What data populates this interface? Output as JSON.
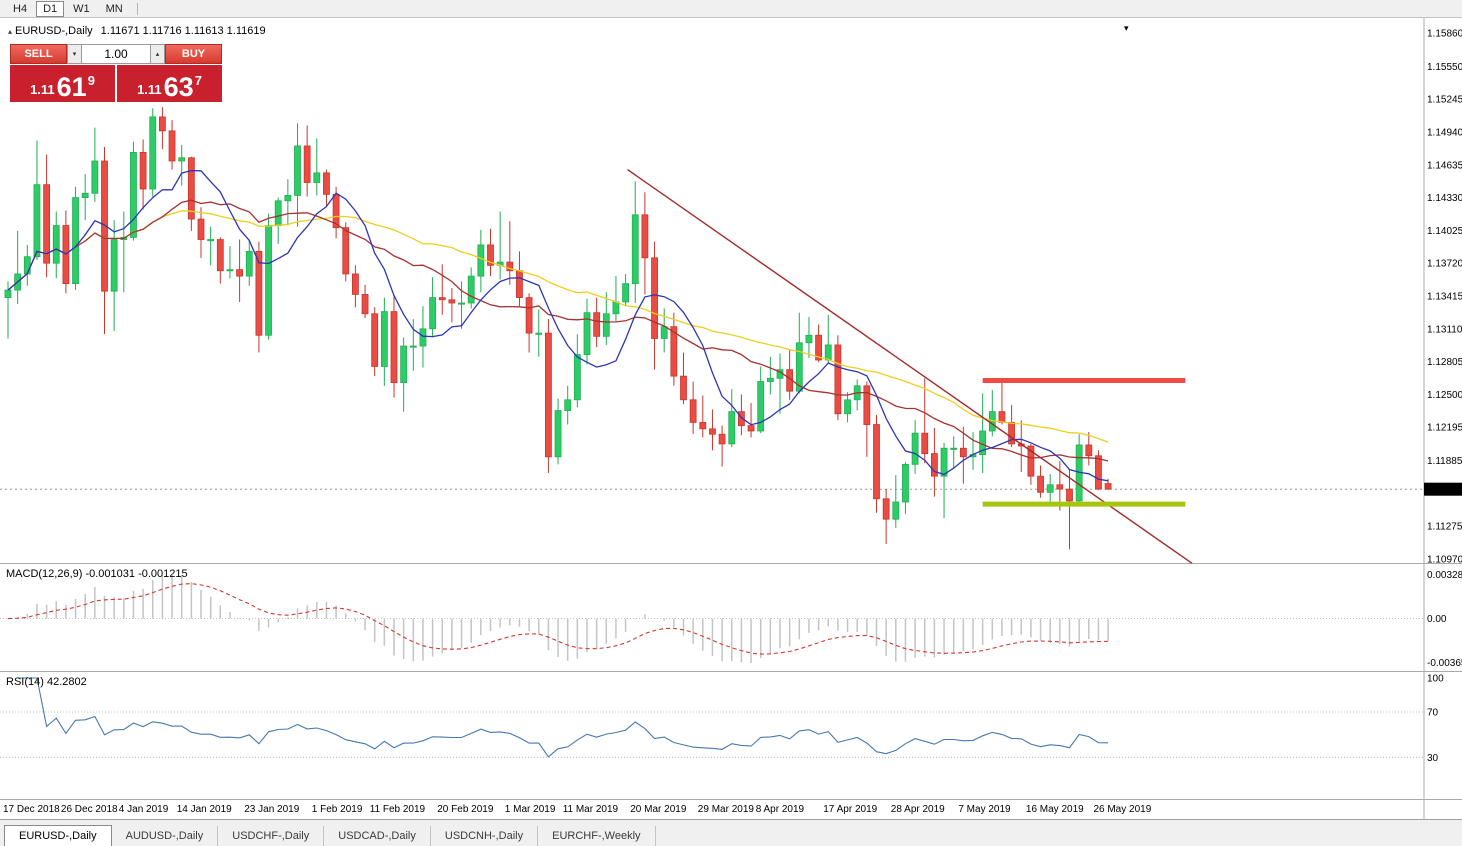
{
  "icons": {
    "symbol_marker": "▴",
    "volume_down": "▾",
    "volume_up": "▴",
    "shift_marker": "▾"
  },
  "toolbar": {
    "timeframes": [
      {
        "label": "H4",
        "active": false
      },
      {
        "label": "D1",
        "active": true
      },
      {
        "label": "W1",
        "active": false
      },
      {
        "label": "MN",
        "active": false
      }
    ]
  },
  "symbol_header": {
    "name": "EURUSD-,Daily",
    "ohlc": "1.11671 1.11716 1.11613 1.11619"
  },
  "trade_panel": {
    "sell_label": "SELL",
    "buy_label": "BUY",
    "volume": "1.00",
    "sell_price": {
      "prefix": "1.11",
      "big": "61",
      "sup": "9"
    },
    "buy_price": {
      "prefix": "1.11",
      "big": "63",
      "sup": "7"
    }
  },
  "chart_data": {
    "type": "candlestick",
    "symbol": "EURUSD-,Daily",
    "colors": {
      "up": "#2ecc66",
      "up_edge": "#1fae54",
      "down": "#e84c42",
      "down_edge": "#c8362d",
      "price_line": "#888888",
      "tag_bg": "#000000",
      "tag_text": "#ffffff"
    },
    "price_axis": {
      "labels": [
        "1.15860",
        "1.15550",
        "1.15245",
        "1.14940",
        "1.14635",
        "1.14330",
        "1.14025",
        "1.13720",
        "1.13415",
        "1.13110",
        "1.12805",
        "1.12500",
        "1.12195",
        "1.11885",
        "1.11275",
        "1.10970"
      ],
      "current": "1.11619"
    },
    "date_axis": [
      {
        "label": "17 Dec 2018",
        "i": 0
      },
      {
        "label": "26 Dec 2018",
        "i": 6
      },
      {
        "label": "4 Jan 2019",
        "i": 12
      },
      {
        "label": "14 Jan 2019",
        "i": 18
      },
      {
        "label": "23 Jan 2019",
        "i": 25
      },
      {
        "label": "1 Feb 2019",
        "i": 32
      },
      {
        "label": "11 Feb 2019",
        "i": 38
      },
      {
        "label": "20 Feb 2019",
        "i": 45
      },
      {
        "label": "1 Mar 2019",
        "i": 52
      },
      {
        "label": "11 Mar 2019",
        "i": 58
      },
      {
        "label": "20 Mar 2019",
        "i": 65
      },
      {
        "label": "29 Mar 2019",
        "i": 72
      },
      {
        "label": "8 Apr 2019",
        "i": 78
      },
      {
        "label": "17 Apr 2019",
        "i": 85
      },
      {
        "label": "28 Apr 2019",
        "i": 92
      },
      {
        "label": "7 May 2019",
        "i": 99
      },
      {
        "label": "16 May 2019",
        "i": 106
      },
      {
        "label": "26 May 2019",
        "i": 113
      }
    ],
    "candles": [
      [
        1.134,
        1.1355,
        1.1302,
        1.1347
      ],
      [
        1.1347,
        1.1402,
        1.1334,
        1.1362
      ],
      [
        1.1362,
        1.1389,
        1.1351,
        1.1378
      ],
      [
        1.1378,
        1.1486,
        1.1375,
        1.1445
      ],
      [
        1.1445,
        1.1473,
        1.1359,
        1.1372
      ],
      [
        1.1372,
        1.142,
        1.1358,
        1.1407
      ],
      [
        1.1407,
        1.1421,
        1.1344,
        1.1353
      ],
      [
        1.1353,
        1.1443,
        1.1347,
        1.1433
      ],
      [
        1.1433,
        1.1455,
        1.1412,
        1.1437
      ],
      [
        1.1437,
        1.1498,
        1.1429,
        1.1467
      ],
      [
        1.1467,
        1.148,
        1.1306,
        1.1346
      ],
      [
        1.1346,
        1.1412,
        1.1309,
        1.1394
      ],
      [
        1.1394,
        1.142,
        1.1345,
        1.1396
      ],
      [
        1.1396,
        1.1485,
        1.1393,
        1.1475
      ],
      [
        1.1475,
        1.1487,
        1.1422,
        1.1441
      ],
      [
        1.1441,
        1.1516,
        1.1434,
        1.1508
      ],
      [
        1.1508,
        1.1517,
        1.1478,
        1.1495
      ],
      [
        1.1495,
        1.1505,
        1.1459,
        1.1467
      ],
      [
        1.1467,
        1.1482,
        1.1444,
        1.147
      ],
      [
        1.147,
        1.1471,
        1.1402,
        1.1413
      ],
      [
        1.1413,
        1.1424,
        1.1377,
        1.1394
      ],
      [
        1.1394,
        1.1406,
        1.137,
        1.1394
      ],
      [
        1.1394,
        1.1396,
        1.1353,
        1.1365
      ],
      [
        1.1365,
        1.1388,
        1.1358,
        1.1366
      ],
      [
        1.1366,
        1.1394,
        1.1336,
        1.136
      ],
      [
        1.136,
        1.1394,
        1.1351,
        1.1383
      ],
      [
        1.1383,
        1.1392,
        1.1289,
        1.1305
      ],
      [
        1.1305,
        1.1418,
        1.1301,
        1.1407
      ],
      [
        1.1407,
        1.1433,
        1.139,
        1.143
      ],
      [
        1.143,
        1.145,
        1.1407,
        1.1435
      ],
      [
        1.1435,
        1.1502,
        1.1406,
        1.1481
      ],
      [
        1.1481,
        1.15,
        1.1434,
        1.1447
      ],
      [
        1.1447,
        1.1488,
        1.1435,
        1.1456
      ],
      [
        1.1456,
        1.1459,
        1.1425,
        1.1436
      ],
      [
        1.1436,
        1.1443,
        1.1395,
        1.1405
      ],
      [
        1.1405,
        1.141,
        1.1355,
        1.1362
      ],
      [
        1.1362,
        1.137,
        1.1331,
        1.1343
      ],
      [
        1.1343,
        1.1352,
        1.1321,
        1.1325
      ],
      [
        1.1325,
        1.1331,
        1.1267,
        1.1276
      ],
      [
        1.1276,
        1.134,
        1.1258,
        1.1327
      ],
      [
        1.1327,
        1.1342,
        1.1247,
        1.1261
      ],
      [
        1.1261,
        1.1303,
        1.1234,
        1.1295
      ],
      [
        1.1295,
        1.132,
        1.1272,
        1.1295
      ],
      [
        1.1295,
        1.1332,
        1.1275,
        1.1311
      ],
      [
        1.1311,
        1.1359,
        1.1303,
        1.134
      ],
      [
        1.134,
        1.1371,
        1.1324,
        1.1338
      ],
      [
        1.1338,
        1.1349,
        1.1317,
        1.1335
      ],
      [
        1.1335,
        1.1355,
        1.1311,
        1.1335
      ],
      [
        1.1335,
        1.1368,
        1.133,
        1.136
      ],
      [
        1.136,
        1.1403,
        1.1345,
        1.1389
      ],
      [
        1.1389,
        1.1404,
        1.136,
        1.137
      ],
      [
        1.137,
        1.142,
        1.1357,
        1.1373
      ],
      [
        1.1373,
        1.1411,
        1.1352,
        1.1365
      ],
      [
        1.1365,
        1.1383,
        1.1332,
        1.134
      ],
      [
        1.134,
        1.1344,
        1.1289,
        1.1307
      ],
      [
        1.1307,
        1.1329,
        1.1285,
        1.1307
      ],
      [
        1.1307,
        1.132,
        1.1177,
        1.1192
      ],
      [
        1.1192,
        1.1246,
        1.1185,
        1.1235
      ],
      [
        1.1235,
        1.1258,
        1.1222,
        1.1245
      ],
      [
        1.1245,
        1.1306,
        1.1238,
        1.1287
      ],
      [
        1.1287,
        1.1339,
        1.1278,
        1.1326
      ],
      [
        1.1326,
        1.134,
        1.1294,
        1.1304
      ],
      [
        1.1304,
        1.1345,
        1.1296,
        1.1325
      ],
      [
        1.1325,
        1.136,
        1.1318,
        1.1336
      ],
      [
        1.1336,
        1.1362,
        1.1333,
        1.1353
      ],
      [
        1.1353,
        1.1448,
        1.1335,
        1.1417
      ],
      [
        1.1417,
        1.1438,
        1.1343,
        1.1377
      ],
      [
        1.1377,
        1.1392,
        1.1273,
        1.1302
      ],
      [
        1.1302,
        1.133,
        1.1289,
        1.1313
      ],
      [
        1.1313,
        1.1326,
        1.1258,
        1.1267
      ],
      [
        1.1267,
        1.1289,
        1.1241,
        1.1245
      ],
      [
        1.1245,
        1.1262,
        1.1213,
        1.1224
      ],
      [
        1.1224,
        1.1249,
        1.121,
        1.1218
      ],
      [
        1.1218,
        1.1236,
        1.1198,
        1.1213
      ],
      [
        1.1213,
        1.1221,
        1.1183,
        1.1204
      ],
      [
        1.1204,
        1.1255,
        1.1201,
        1.1234
      ],
      [
        1.1234,
        1.125,
        1.1212,
        1.1221
      ],
      [
        1.1221,
        1.1242,
        1.121,
        1.1216
      ],
      [
        1.1216,
        1.1276,
        1.1214,
        1.1262
      ],
      [
        1.1262,
        1.1285,
        1.125,
        1.1265
      ],
      [
        1.1265,
        1.1288,
        1.1232,
        1.1273
      ],
      [
        1.1273,
        1.1292,
        1.1245,
        1.1253
      ],
      [
        1.1253,
        1.1326,
        1.1251,
        1.1298
      ],
      [
        1.1298,
        1.1322,
        1.1284,
        1.1305
      ],
      [
        1.1305,
        1.1315,
        1.128,
        1.1282
      ],
      [
        1.1282,
        1.1324,
        1.1279,
        1.1296
      ],
      [
        1.1296,
        1.1305,
        1.1226,
        1.1232
      ],
      [
        1.1232,
        1.1252,
        1.1224,
        1.1245
      ],
      [
        1.1245,
        1.1264,
        1.1235,
        1.1258
      ],
      [
        1.1258,
        1.1262,
        1.1192,
        1.1222
      ],
      [
        1.1222,
        1.1231,
        1.114,
        1.1153
      ],
      [
        1.1153,
        1.1162,
        1.1111,
        1.1134
      ],
      [
        1.1134,
        1.1175,
        1.1126,
        1.115
      ],
      [
        1.115,
        1.1187,
        1.1139,
        1.1185
      ],
      [
        1.1185,
        1.1226,
        1.1176,
        1.1214
      ],
      [
        1.1214,
        1.1265,
        1.1186,
        1.1195
      ],
      [
        1.1195,
        1.1219,
        1.1155,
        1.1174
      ],
      [
        1.1174,
        1.1205,
        1.1135,
        1.12
      ],
      [
        1.12,
        1.1211,
        1.1182,
        1.12
      ],
      [
        1.12,
        1.122,
        1.1167,
        1.1192
      ],
      [
        1.1192,
        1.1215,
        1.118,
        1.1194
      ],
      [
        1.1194,
        1.1251,
        1.1177,
        1.1216
      ],
      [
        1.1216,
        1.1254,
        1.1211,
        1.1234
      ],
      [
        1.1234,
        1.1264,
        1.1222,
        1.1224
      ],
      [
        1.1224,
        1.124,
        1.1201,
        1.1204
      ],
      [
        1.1204,
        1.1226,
        1.1178,
        1.1202
      ],
      [
        1.1202,
        1.1204,
        1.1166,
        1.1174
      ],
      [
        1.1174,
        1.1184,
        1.1154,
        1.1159
      ],
      [
        1.1159,
        1.1176,
        1.115,
        1.1166
      ],
      [
        1.1166,
        1.1188,
        1.1142,
        1.1162
      ],
      [
        1.1162,
        1.118,
        1.1106,
        1.1151
      ],
      [
        1.1151,
        1.1213,
        1.1148,
        1.1203
      ],
      [
        1.1203,
        1.1215,
        1.1184,
        1.1193
      ],
      [
        1.1193,
        1.1198,
        1.1161,
        1.1162
      ],
      [
        1.11671,
        1.11716,
        1.11613,
        1.11619
      ]
    ],
    "overlays": {
      "moving_averages": [
        {
          "name": "ma-slow",
          "period": 34,
          "color": "#eecf1e"
        },
        {
          "name": "ma-mid",
          "period": 17,
          "color": "#a83232"
        },
        {
          "name": "ma-fast",
          "period": 8,
          "color": "#2c35b8"
        }
      ],
      "trendline": {
        "from_index": 64.2,
        "from_price": 1.1459,
        "to_index": 122.7,
        "to_price": 1.1093,
        "color": "#a52a2a"
      },
      "resistance": {
        "from_index": 101,
        "to_index": 122,
        "price": 1.1263,
        "color": "#f04b43",
        "width": 5
      },
      "support": {
        "from_index": 101,
        "to_index": 122,
        "price": 1.1148,
        "color": "#a6c50e",
        "width": 5
      }
    },
    "macd": {
      "label": "MACD(12,26,9) -0.001031 -0.001215",
      "fast": 12,
      "slow": 26,
      "signal": 9,
      "axis_top": "0.003287",
      "axis_zero": "0.00",
      "axis_bottom": "-0.003655",
      "histogram_color": "#c4c4c4",
      "signal_color": "#d23a32"
    },
    "rsi": {
      "label": "RSI(14) 42.2802",
      "period": 14,
      "axis": [
        {
          "v": 100,
          "label": "100"
        },
        {
          "v": 70,
          "label": "70"
        },
        {
          "v": 30,
          "label": "30"
        }
      ],
      "levels": [
        70,
        30
      ],
      "line_color": "#4878b0"
    }
  },
  "tabs": [
    {
      "label": "EURUSD-,Daily",
      "active": true
    },
    {
      "label": "AUDUSD-,Daily",
      "active": false
    },
    {
      "label": "USDCHF-,Daily",
      "active": false
    },
    {
      "label": "USDCAD-,Daily",
      "active": false
    },
    {
      "label": "USDCNH-,Daily",
      "active": false
    },
    {
      "label": "EURCHF-,Weekly",
      "active": false
    }
  ]
}
